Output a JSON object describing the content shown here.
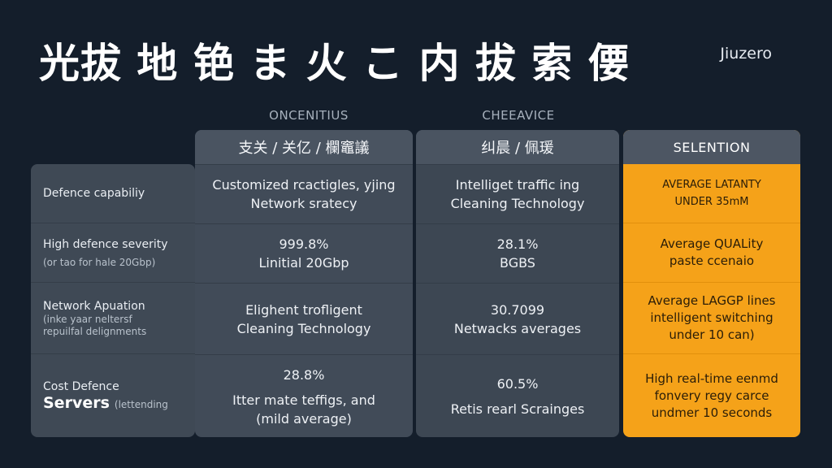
{
  "title": "光拔 地 铯 ま 火 こ 内 拔 索 偠",
  "brand": "Jiuzero",
  "column_headers": [
    "ONCENITIUS",
    "CHEEAVICE"
  ],
  "col1_subheader": "支关 / 关亿 / 欄竈議",
  "col2_subheader": "纠晨 / 佩瑗",
  "selection_header": "SELENTION",
  "rows": [
    {
      "label": [
        "Defence capabiliy"
      ],
      "col1": [
        "Customized rcactigles, yjing",
        "Network sratecy"
      ],
      "col2": [
        "Intelliget traffic ing",
        "Cleaning Technology"
      ],
      "sel": [
        "AVERAGE LATANTY",
        "UNDER 35mM"
      ]
    },
    {
      "label": [
        "High defence severity",
        "(or tao for hale 20Gbp)"
      ],
      "col1": [
        "999.8%",
        "Linitial 20Gbp"
      ],
      "col2": [
        "28.1%",
        "BGBS"
      ],
      "sel": [
        "Average QUALity",
        "paste ccenaio"
      ]
    },
    {
      "label": [
        "Network Apuation",
        "(inke yaar neltersf",
        "repuilfal delignments"
      ],
      "col1": [
        "Elighent trofligent",
        "Cleaning Technology"
      ],
      "col2": [
        "30.7099",
        "Netwacks averages"
      ],
      "sel": [
        "Average LAGGP lines",
        "intelligent switching",
        "under 10 can)"
      ]
    },
    {
      "label": [
        "Cost Defence",
        "Servers",
        "(lettending"
      ],
      "col1": [
        "28.8%",
        "Itter mate teffigs, and",
        "(mild average)"
      ],
      "col2": [
        "60.5%",
        "Retis rearl Scrainges"
      ],
      "sel": [
        "High real-time eenmd",
        "fonvery regy carce",
        "undmer 10 seconds"
      ]
    }
  ]
}
